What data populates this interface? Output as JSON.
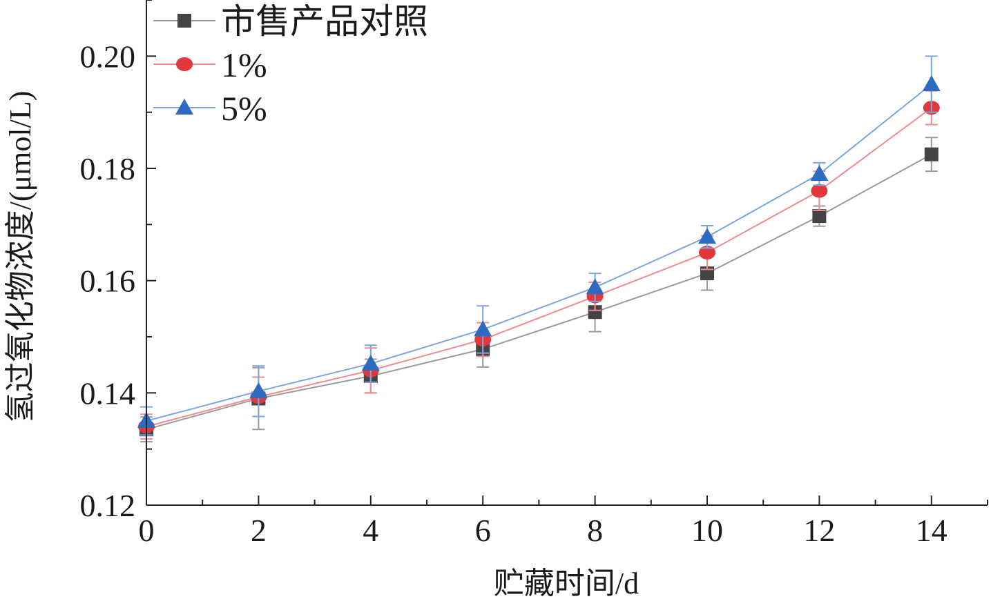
{
  "chart_data": {
    "type": "line",
    "title": "",
    "xlabel": "贮藏时间/d",
    "ylabel": "氢过氧化物浓度/(μmol/L)",
    "xlim": [
      0,
      15
    ],
    "ylim": [
      0.12,
      0.21
    ],
    "xticks": [
      0,
      2,
      4,
      6,
      8,
      10,
      12,
      14
    ],
    "xtick_labels": [
      "0",
      "2",
      "4",
      "6",
      "8",
      "10",
      "12",
      "14"
    ],
    "yticks": [
      0.12,
      0.14,
      0.16,
      0.18,
      0.2
    ],
    "ytick_labels": [
      "0.12",
      "0.14",
      "0.16",
      "0.18",
      "0.20"
    ],
    "grid": false,
    "legend_position": "top-left",
    "x": [
      0,
      2,
      4,
      6,
      8,
      10,
      12,
      14
    ],
    "series": [
      {
        "name": "市售产品对照",
        "marker": "square",
        "color": "#444444",
        "line_color": "#9a9a9a",
        "values": [
          0.1335,
          0.139,
          0.143,
          0.1478,
          0.1544,
          0.1613,
          0.1715,
          0.1825
        ],
        "errors": [
          0.0022,
          0.0055,
          0.003,
          0.0032,
          0.0035,
          0.003,
          0.0018,
          0.003
        ]
      },
      {
        "name": "1%",
        "marker": "circle",
        "color": "#e0383c",
        "line_color": "#f08a8c",
        "values": [
          0.134,
          0.1393,
          0.144,
          0.1495,
          0.1572,
          0.165,
          0.176,
          0.1908
        ],
        "errors": [
          0.0022,
          0.0035,
          0.004,
          0.003,
          0.0025,
          0.003,
          0.0035,
          0.003
        ]
      },
      {
        "name": "5%",
        "marker": "triangle",
        "color": "#2d6bc0",
        "line_color": "#7aa6e0",
        "values": [
          0.135,
          0.1403,
          0.1452,
          0.1513,
          0.1588,
          0.1678,
          0.179,
          0.195
        ],
        "errors": [
          0.0025,
          0.0045,
          0.0033,
          0.0042,
          0.0025,
          0.002,
          0.002,
          0.005
        ]
      }
    ]
  }
}
